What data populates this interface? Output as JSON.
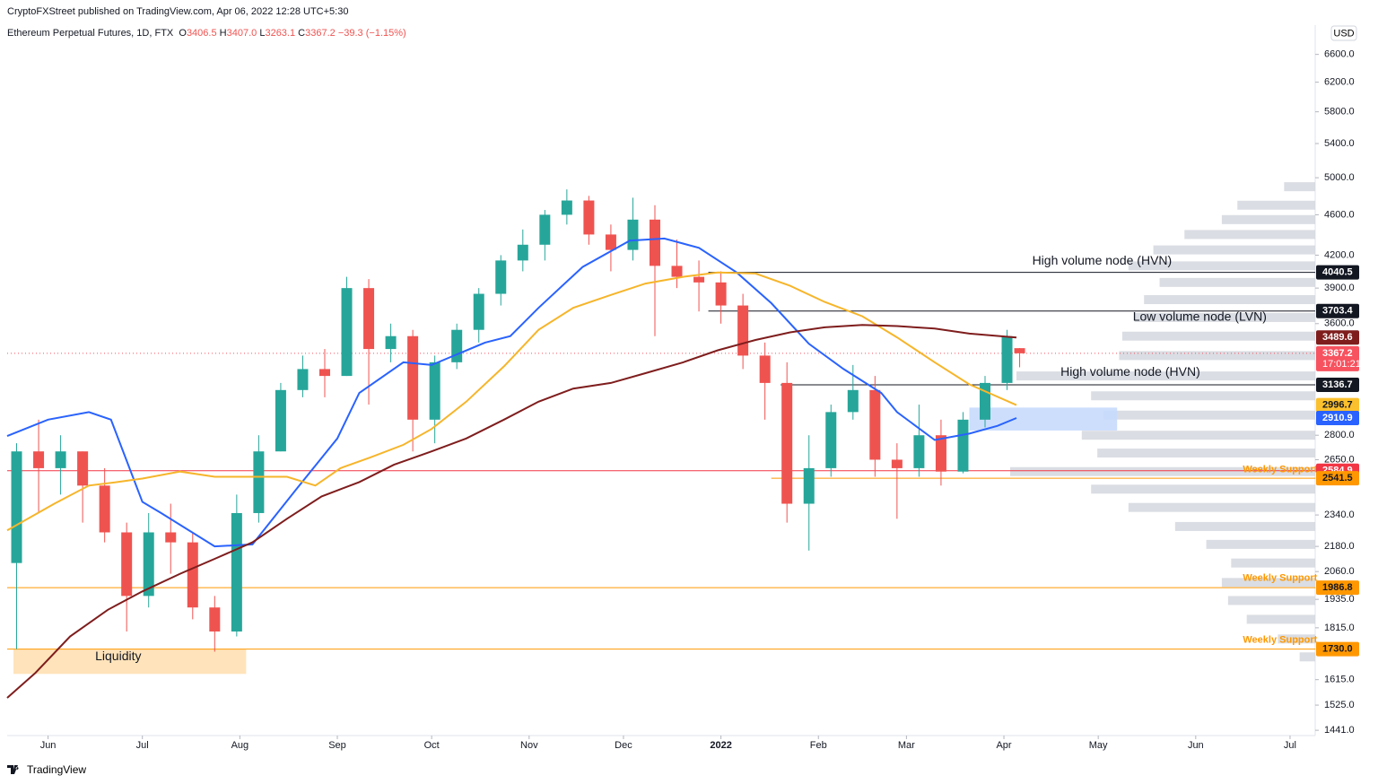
{
  "header": {
    "published": "CryptoFXStreet published on TradingView.com, Apr 06, 2022 12:28 UTC+5:30",
    "symbol": "Ethereum Perpetual Futures, 1D, FTX",
    "ohlc": [
      {
        "key": "O",
        "value": "3406.5"
      },
      {
        "key": "H",
        "value": "3407.0"
      },
      {
        "key": "L",
        "value": "3263.1"
      },
      {
        "key": "C",
        "value": "3367.2"
      }
    ],
    "change": "−39.3 (−1.15%)",
    "currency": "USD"
  },
  "footer": {
    "brand": "TradingView"
  },
  "chart_data": {
    "type": "candlestick",
    "log_scale": true,
    "grid": false,
    "up_color": "#26a69a",
    "down_color": "#ef5350",
    "xlim": [
      -13,
      403
    ],
    "xticks": [
      {
        "value": 0,
        "label": "Jun"
      },
      {
        "value": 30,
        "label": "Jul"
      },
      {
        "value": 61,
        "label": "Aug"
      },
      {
        "value": 92,
        "label": "Sep"
      },
      {
        "value": 122,
        "label": "Oct"
      },
      {
        "value": 153,
        "label": "Nov"
      },
      {
        "value": 183,
        "label": "Dec"
      },
      {
        "value": 214,
        "label": "2022"
      },
      {
        "value": 245,
        "label": "Feb"
      },
      {
        "value": 273,
        "label": "Mar"
      },
      {
        "value": 304,
        "label": "Apr"
      },
      {
        "value": 334,
        "label": "May"
      },
      {
        "value": 365,
        "label": "Jun"
      },
      {
        "value": 395,
        "label": "Jul"
      }
    ],
    "ylim": [
      1424,
      7050
    ],
    "yticks": [
      {
        "value": 6600,
        "label": "6600.0"
      },
      {
        "value": 6200,
        "label": "6200.0"
      },
      {
        "value": 5800,
        "label": "5800.0"
      },
      {
        "value": 5400,
        "label": "5400.0"
      },
      {
        "value": 5000,
        "label": "5000.0"
      },
      {
        "value": 4600,
        "label": "4600.0"
      },
      {
        "value": 4200,
        "label": "4200.0"
      },
      {
        "value": 3900,
        "label": "3900.0"
      },
      {
        "value": 3600,
        "label": "3600.0"
      },
      {
        "value": 2800,
        "label": "2800.0"
      },
      {
        "value": 2650,
        "label": "2650.0"
      },
      {
        "value": 2340,
        "label": "2340.0"
      },
      {
        "value": 2180,
        "label": "2180.0"
      },
      {
        "value": 2060,
        "label": "2060.0"
      },
      {
        "value": 1935,
        "label": "1935.0"
      },
      {
        "value": 1815,
        "label": "1815.0"
      },
      {
        "value": 1615,
        "label": "1615.0"
      },
      {
        "value": 1525,
        "label": "1525.0"
      },
      {
        "value": 1441,
        "label": "1441.0"
      }
    ],
    "x": [
      -10,
      -3,
      4,
      11,
      18,
      25,
      32,
      39,
      46,
      53,
      60,
      67,
      74,
      81,
      88,
      95,
      102,
      109,
      116,
      123,
      130,
      137,
      144,
      151,
      158,
      165,
      172,
      179,
      186,
      193,
      200,
      207,
      214,
      221,
      228,
      235,
      242,
      249,
      256,
      263,
      270,
      277,
      284,
      291,
      298,
      305,
      309
    ],
    "open": [
      2100,
      2700,
      2600,
      2700,
      2500,
      2250,
      1950,
      2250,
      2200,
      1900,
      1800,
      2350,
      2700,
      3100,
      3250,
      3200,
      3900,
      3400,
      3500,
      2900,
      3300,
      3550,
      3850,
      4150,
      4300,
      4600,
      4750,
      4400,
      4250,
      4550,
      4100,
      4000,
      3950,
      3750,
      3350,
      3150,
      2400,
      2600,
      2950,
      3100,
      2650,
      2600,
      2800,
      2580,
      2900,
      3150,
      3406.5
    ],
    "high": [
      2750,
      2900,
      2800,
      2700,
      2600,
      2300,
      2350,
      2400,
      2250,
      1950,
      2450,
      2800,
      3150,
      3350,
      3400,
      4000,
      3980,
      3600,
      3550,
      3350,
      3600,
      3900,
      4200,
      4450,
      4650,
      4870,
      4800,
      4500,
      4780,
      4700,
      4350,
      4150,
      4050,
      3850,
      3450,
      3300,
      2800,
      3000,
      3280,
      3200,
      2750,
      3000,
      2900,
      2950,
      3200,
      3550,
      3407.0
    ],
    "low": [
      1730,
      2350,
      2450,
      2300,
      2200,
      1800,
      1900,
      2050,
      1850,
      1720,
      1780,
      2300,
      2700,
      3050,
      3050,
      3200,
      3000,
      3300,
      2700,
      2750,
      3250,
      3450,
      3750,
      4050,
      4150,
      4500,
      4300,
      4050,
      4150,
      3500,
      3900,
      3700,
      3600,
      3250,
      2900,
      2300,
      2160,
      2550,
      2900,
      2550,
      2320,
      2550,
      2500,
      2570,
      2850,
      3100,
      3263.1
    ],
    "close": [
      2700,
      2600,
      2700,
      2500,
      2250,
      1950,
      2250,
      2200,
      1900,
      1800,
      2350,
      2700,
      3100,
      3250,
      3200,
      3900,
      3400,
      3500,
      2900,
      3300,
      3550,
      3850,
      4150,
      4300,
      4600,
      4750,
      4400,
      4250,
      4550,
      4100,
      4000,
      3950,
      3750,
      3350,
      3150,
      2400,
      2600,
      2950,
      3100,
      2650,
      2600,
      2800,
      2580,
      2900,
      3150,
      3500,
      3367.2
    ],
    "lines": [
      {
        "color": "#2962ff",
        "x": [
          -13,
          0,
          13,
          20,
          30,
          36,
          53,
          65,
          79,
          92,
          99,
          113,
          122,
          139,
          147,
          156,
          170,
          185,
          196,
          207,
          219,
          230,
          242,
          253,
          265,
          270,
          282,
          293,
          302,
          308
        ],
        "values": [
          2795,
          2900,
          2950,
          2900,
          2410,
          2350,
          2180,
          2190,
          2480,
          2780,
          3080,
          3300,
          3280,
          3450,
          3500,
          3730,
          4090,
          4340,
          4360,
          4270,
          4040,
          3770,
          3440,
          3250,
          3080,
          2950,
          2770,
          2810,
          2860,
          2910.9
        ]
      },
      {
        "color": "#f6b52a",
        "x": [
          -13,
          2,
          13,
          22,
          30,
          42,
          53,
          65,
          76,
          85,
          93,
          102,
          113,
          122,
          133,
          145,
          156,
          167,
          179,
          190,
          202,
          213,
          225,
          236,
          247,
          259,
          270,
          282,
          293,
          308
        ],
        "values": [
          2260,
          2400,
          2500,
          2520,
          2540,
          2580,
          2550,
          2550,
          2550,
          2500,
          2600,
          2660,
          2740,
          2840,
          3020,
          3270,
          3550,
          3730,
          3840,
          3940,
          4000,
          4040,
          4030,
          3920,
          3780,
          3660,
          3490,
          3300,
          3140,
          2996.7
        ]
      },
      {
        "color": "#7f1d1d",
        "x": [
          -13,
          -4,
          7,
          19,
          30,
          42,
          53,
          65,
          76,
          87,
          99,
          110,
          122,
          133,
          145,
          156,
          167,
          179,
          190,
          202,
          213,
          225,
          236,
          247,
          259,
          270,
          282,
          293,
          308
        ],
        "values": [
          1550,
          1640,
          1780,
          1890,
          1970,
          2050,
          2120,
          2200,
          2320,
          2440,
          2520,
          2620,
          2700,
          2780,
          2900,
          3020,
          3110,
          3150,
          3220,
          3300,
          3390,
          3470,
          3530,
          3570,
          3590,
          3580,
          3560,
          3520,
          3489.6
        ]
      }
    ],
    "volume_profile": {
      "color": "#d1d4dc",
      "prices": [
        4900,
        4700,
        4550,
        4400,
        4250,
        4100,
        3950,
        3800,
        3650,
        3500,
        3350,
        3200,
        3060,
        2930,
        2800,
        2690,
        2580,
        2480,
        2380,
        2280,
        2190,
        2100,
        2010,
        1930,
        1850,
        1770,
        1700
      ],
      "values": [
        10,
        25,
        30,
        42,
        52,
        60,
        50,
        55,
        58,
        62,
        63,
        96,
        72,
        68,
        75,
        70,
        98,
        72,
        60,
        45,
        35,
        27,
        30,
        28,
        22,
        12,
        5
      ]
    },
    "zones": [
      {
        "x": [
          -11,
          63
        ],
        "y": [
          1636,
          1730
        ],
        "color": "#ffe0b2"
      },
      {
        "x": [
          293,
          340
        ],
        "y": [
          2830,
          2980
        ],
        "color": "#c7dafc"
      }
    ],
    "levels": [
      {
        "value": 4040.5,
        "label": "4040.5",
        "color": "#131722",
        "text_color": "#ffffff",
        "from": 210,
        "style": "solid"
      },
      {
        "value": 3703.4,
        "label": "3703.4",
        "color": "#131722",
        "text_color": "#ffffff",
        "from": 210,
        "style": "solid"
      },
      {
        "value": 3489.6,
        "label": "3489.6",
        "color": "#7f1d1d",
        "text_color": "#ffffff"
      },
      {
        "value": 3367.2,
        "label": "3367.2",
        "sub": "17:01:21",
        "color": "#f7525f",
        "text_color": "#ffffff",
        "from": -13,
        "style": "dotted"
      },
      {
        "value": 3136.7,
        "label": "3136.7",
        "color": "#131722",
        "text_color": "#ffffff",
        "from": 233,
        "style": "solid"
      },
      {
        "value": 2996.7,
        "label": "2996.7",
        "color": "#fbc02d",
        "text_color": "#131722"
      },
      {
        "value": 2910.9,
        "label": "2910.9",
        "color": "#2962ff",
        "text_color": "#ffffff"
      },
      {
        "value": 2584.9,
        "label": "2584.9",
        "color": "#f23645",
        "text_color": "#ffffff",
        "from": -13,
        "style": "solid"
      },
      {
        "value": 2541.5,
        "label": "2541.5",
        "color": "#ff9800",
        "text_color": "#131722",
        "from": 230,
        "style": "solid"
      },
      {
        "value": 1986.8,
        "label": "1986.8",
        "color": "#ff9800",
        "text_color": "#131722",
        "from": -13,
        "style": "solid"
      },
      {
        "value": 1730,
        "label": "1730.0",
        "color": "#ff9800",
        "text_color": "#131722",
        "from": -13,
        "style": "solid"
      }
    ],
    "annotations": [
      {
        "text": "High volume node (HVN)",
        "x": 313,
        "y": 4143,
        "color": "#131722"
      },
      {
        "text": "Low volume node (LVN)",
        "x": 345,
        "y": 3650,
        "color": "#131722"
      },
      {
        "text": "High volume node (HVN)",
        "x": 322,
        "y": 3225,
        "color": "#131722"
      },
      {
        "text": "Weekly Support",
        "x": 380,
        "y": 2590,
        "color": "#ff9800"
      },
      {
        "text": "Weekly Support",
        "x": 380,
        "y": 2030,
        "color": "#ff9800"
      },
      {
        "text": "Weekly Support",
        "x": 380,
        "y": 1765,
        "color": "#ff9800"
      },
      {
        "text": "Liquidity",
        "x": 15,
        "y": 1700,
        "color": "#131722"
      }
    ]
  }
}
